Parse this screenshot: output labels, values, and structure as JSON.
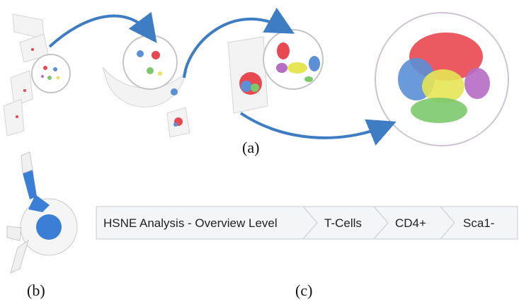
{
  "captions": {
    "a": "(a)",
    "b": "(b)",
    "c": "(c)"
  },
  "breadcrumb": {
    "items": [
      {
        "label": "HSNE Analysis - Overview Level"
      },
      {
        "label": "T-Cells"
      },
      {
        "label": "CD4+"
      },
      {
        "label": "Sca1-"
      }
    ]
  },
  "colors": {
    "arrow": "#3e7cc4",
    "cluster_red": "#e8484f",
    "cluster_blue": "#5b8fd6",
    "cluster_yellow": "#e6e655",
    "cluster_green": "#7cc96b",
    "cluster_purple": "#b66bc4",
    "sunburst_blue": "#3a7fd5",
    "crumb_fill": "#f4f5f7",
    "crumb_stroke": "#c9ccd1"
  }
}
